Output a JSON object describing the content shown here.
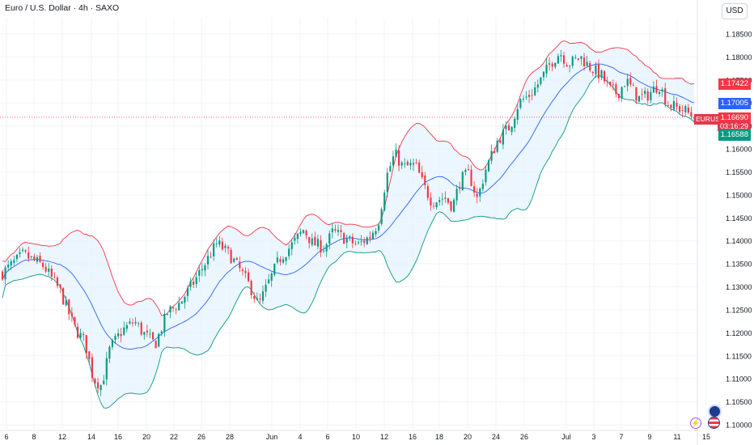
{
  "header": {
    "title": "Euro / U.S. Dollar · 4h · SAXO",
    "currency_button": "USD"
  },
  "price_tags": {
    "upper_band": "1.17422",
    "middle_band": "1.17005",
    "symbol": "EURUSD",
    "last_price": "1.16690",
    "countdown": "03:16:29",
    "lower_band": "1.16588"
  },
  "colors": {
    "up": "#089981",
    "down": "#f23645",
    "upper_band": "#f23645",
    "middle_band": "#2962ff",
    "lower_band": "#089981",
    "band_fill": "#e3f2fd",
    "last_price_line": "#f23645",
    "grid": "#f0f3fa",
    "axis_text": "#131722"
  },
  "chart_data": {
    "type": "candlestick",
    "indicator": "Bollinger Bands",
    "ylim": [
      1.0985,
      1.1895
    ],
    "y_ticks": [
      "1.18500",
      "1.18000",
      "1.17500",
      "1.17000",
      "1.16500",
      "1.16000",
      "1.15500",
      "1.15000",
      "1.14500",
      "1.14000",
      "1.13500",
      "1.13000",
      "1.12500",
      "1.12000",
      "1.11500",
      "1.11000",
      "1.10500",
      "1.10000"
    ],
    "y_tick_values": [
      1.185,
      1.18,
      1.175,
      1.17,
      1.165,
      1.16,
      1.155,
      1.15,
      1.145,
      1.14,
      1.135,
      1.13,
      1.125,
      1.12,
      1.115,
      1.11,
      1.105,
      1.1
    ],
    "x_ticks": [
      "6",
      "8",
      "12",
      "14",
      "16",
      "20",
      "22",
      "26",
      "28",
      "Jun",
      "4",
      "6",
      "10",
      "12",
      "16",
      "18",
      "20",
      "24",
      "26",
      "Jul",
      "3",
      "7",
      "9",
      "11",
      "15"
    ],
    "bar_count": 240,
    "close_path": [
      [
        0,
        1.133
      ],
      [
        10,
        1.137
      ],
      [
        20,
        1.1345
      ],
      [
        28,
        1.129
      ],
      [
        35,
        1.121
      ],
      [
        40,
        1.118
      ],
      [
        44,
        1.11
      ],
      [
        48,
        1.1085
      ],
      [
        52,
        1.1165
      ],
      [
        58,
        1.1205
      ],
      [
        64,
        1.1225
      ],
      [
        68,
        1.12
      ],
      [
        74,
        1.1175
      ],
      [
        80,
        1.1245
      ],
      [
        86,
        1.1265
      ],
      [
        92,
        1.1305
      ],
      [
        98,
        1.135
      ],
      [
        104,
        1.1395
      ],
      [
        110,
        1.137
      ],
      [
        116,
        1.133
      ],
      [
        120,
        1.13
      ],
      [
        124,
        1.126
      ],
      [
        128,
        1.13
      ],
      [
        134,
        1.136
      ],
      [
        140,
        1.139
      ],
      [
        146,
        1.1425
      ],
      [
        150,
        1.1395
      ],
      [
        156,
        1.1385
      ],
      [
        160,
        1.142
      ],
      [
        166,
        1.1405
      ],
      [
        172,
        1.139
      ],
      [
        178,
        1.141
      ],
      [
        182,
        1.144
      ],
      [
        186,
        1.154
      ],
      [
        190,
        1.159
      ],
      [
        194,
        1.156
      ],
      [
        200,
        1.1565
      ],
      [
        204,
        1.152
      ],
      [
        208,
        1.1485
      ],
      [
        214,
        1.1495
      ],
      [
        218,
        1.1475
      ],
      [
        222,
        1.1535
      ],
      [
        226,
        1.1545
      ],
      [
        230,
        1.149
      ],
      [
        234,
        1.1555
      ],
      [
        240,
        1.162
      ],
      [
        246,
        1.165
      ],
      [
        250,
        1.17
      ],
      [
        256,
        1.172
      ],
      [
        260,
        1.1745
      ],
      [
        266,
        1.179
      ],
      [
        270,
        1.181
      ],
      [
        274,
        1.1785
      ],
      [
        280,
        1.18
      ],
      [
        284,
        1.178
      ],
      [
        290,
        1.176
      ],
      [
        294,
        1.173
      ],
      [
        298,
        1.172
      ],
      [
        302,
        1.175
      ],
      [
        308,
        1.171
      ],
      [
        312,
        1.1715
      ],
      [
        318,
        1.174
      ],
      [
        322,
        1.17
      ],
      [
        326,
        1.169
      ],
      [
        330,
        1.1685
      ],
      [
        335,
        1.1669
      ]
    ],
    "last_price": 1.1669,
    "upper_band_last": 1.17422,
    "middle_band_last": 1.17005,
    "lower_band_last": 1.16588
  }
}
